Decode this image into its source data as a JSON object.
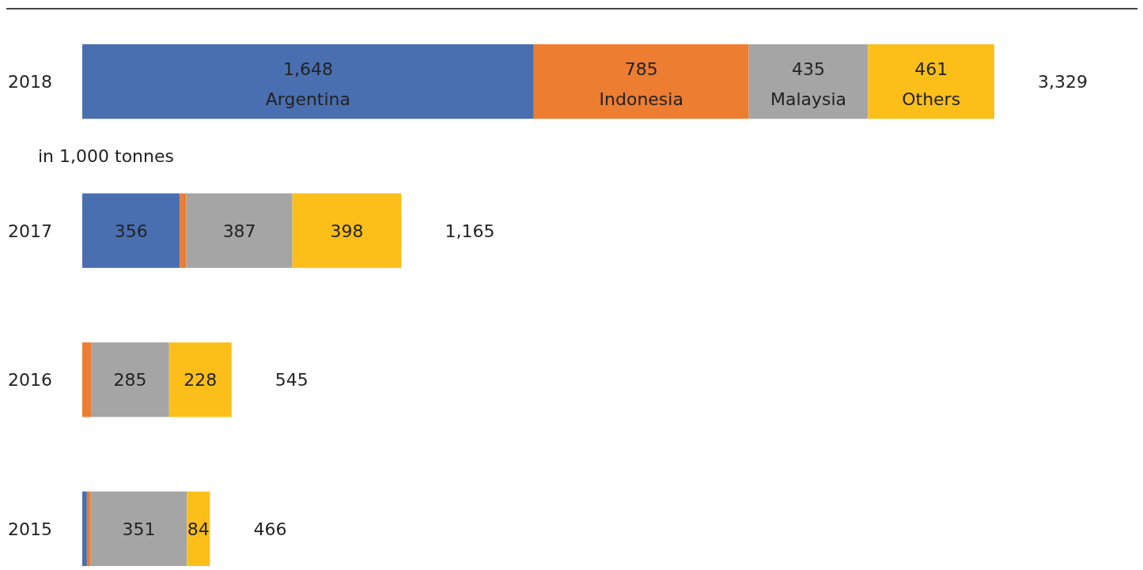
{
  "chart_data": {
    "type": "bar",
    "orientation": "horizontal",
    "stacked": true,
    "categories": [
      "2018",
      "2017",
      "2016",
      "2015"
    ],
    "series": [
      {
        "name": "Argentina",
        "color": "#4a6fb0",
        "values": [
          1648,
          356,
          0,
          17
        ],
        "value_labels": [
          "1,648",
          "356",
          null,
          null
        ]
      },
      {
        "name": "Indonesia",
        "color": "#ed7d31",
        "values": [
          785,
          24,
          32,
          14
        ],
        "value_labels": [
          "785",
          null,
          null,
          null
        ]
      },
      {
        "name": "Malaysia",
        "color": "#a5a5a5",
        "values": [
          435,
          387,
          285,
          351
        ],
        "value_labels": [
          "435",
          "387",
          "285",
          "351"
        ]
      },
      {
        "name": "Others",
        "color": "#fcbf19",
        "values": [
          461,
          398,
          228,
          84
        ],
        "value_labels": [
          "461",
          "398",
          "228",
          "84"
        ]
      }
    ],
    "totals": [
      "3,329",
      "1,165",
      "545",
      "466"
    ],
    "annotations": [
      "in 1,000 tonnes"
    ],
    "data_labels": false
  }
}
